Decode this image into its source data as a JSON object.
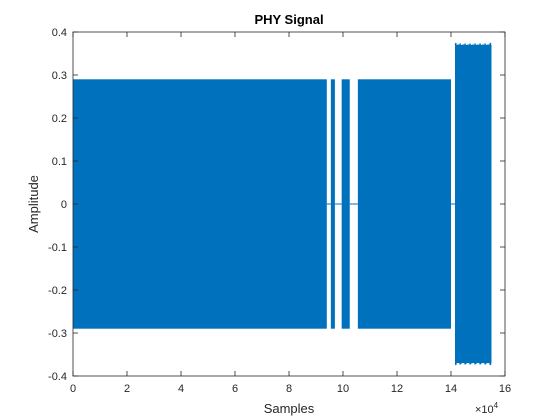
{
  "chart_data": {
    "type": "line",
    "title": "PHY Signal",
    "xlabel": "Samples",
    "ylabel": "Amplitude",
    "x_exponent_label": "×10",
    "x_exponent_power": "4",
    "xlim": [
      0,
      16
    ],
    "ylim": [
      -0.4,
      0.4
    ],
    "x_unit_multiplier": 10000,
    "xticks": [
      "0",
      "2",
      "4",
      "6",
      "8",
      "10",
      "12",
      "14",
      "16"
    ],
    "yticks": [
      "-0.4",
      "-0.3",
      "-0.2",
      "-0.1",
      "0",
      "0.1",
      "0.2",
      "0.3",
      "0.4"
    ],
    "grid": false,
    "legend": "none",
    "series_color": "#0072bd",
    "series": [
      {
        "segments": [
          {
            "x_start": 0.0,
            "x_end": 9.4,
            "amplitude": 0.29
          },
          {
            "x_start": 9.55,
            "x_end": 9.7,
            "amplitude": 0.29
          },
          {
            "x_start": 9.95,
            "x_end": 10.25,
            "amplitude": 0.29
          },
          {
            "x_start": 10.55,
            "x_end": 14.0,
            "amplitude": 0.29
          },
          {
            "x_start": 14.15,
            "x_end": 15.5,
            "amplitude": 0.37
          }
        ],
        "baseline_gaps": [
          {
            "x_start": 9.4,
            "x_end": 9.55
          },
          {
            "x_start": 9.7,
            "x_end": 9.95
          },
          {
            "x_start": 10.25,
            "x_end": 10.55
          },
          {
            "x_start": 14.0,
            "x_end": 14.15
          }
        ]
      }
    ]
  }
}
